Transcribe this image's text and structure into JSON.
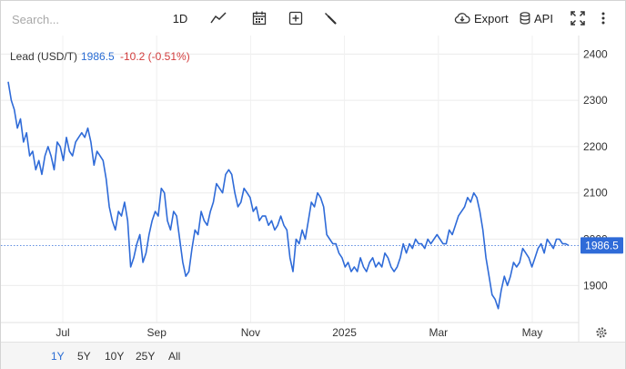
{
  "toolbar": {
    "search_placeholder": "Search...",
    "period_label": "1D",
    "export_label": "Export",
    "api_label": "API",
    "icons": [
      "line-chart-icon",
      "calendar-icon",
      "add-icon",
      "wrench-icon",
      "cloud-download-icon",
      "database-icon",
      "fullscreen-icon",
      "more-vert-icon"
    ]
  },
  "header": {
    "name": "Lead (USD/T)",
    "last": "1986.5",
    "change": "-10.2 (-0.51%)"
  },
  "price_label": "1986.5",
  "ranges": [
    {
      "label": "1Y",
      "active": true
    },
    {
      "label": "5Y",
      "active": false
    },
    {
      "label": "10Y",
      "active": false
    },
    {
      "label": "25Y",
      "active": false
    },
    {
      "label": "All",
      "active": false
    }
  ],
  "chart_data": {
    "type": "line",
    "title": "Lead (USD/T)",
    "x_ticks": [
      "Jul",
      "Sep",
      "Nov",
      "2025",
      "Mar",
      "May"
    ],
    "y_ticks": [
      1900,
      2000,
      2100,
      2200,
      2300,
      2400
    ],
    "ylim": [
      1820,
      2440
    ],
    "grid": true,
    "last_value": 1986.5,
    "colors": {
      "line": "#2f6bd8",
      "label_bg": "#2f6bd8"
    },
    "series": [
      {
        "values": [
          2340,
          2300,
          2280,
          2240,
          2260,
          2210,
          2230,
          2180,
          2190,
          2150,
          2170,
          2140,
          2180,
          2200,
          2180,
          2150,
          2210,
          2200,
          2170,
          2220,
          2190,
          2180,
          2210,
          2220,
          2230,
          2220,
          2240,
          2210,
          2160,
          2190,
          2180,
          2170,
          2130,
          2070,
          2040,
          2020,
          2060,
          2050,
          2080,
          2040,
          1940,
          1960,
          1990,
          2010,
          1950,
          1970,
          2010,
          2040,
          2060,
          2050,
          2110,
          2100,
          2040,
          2020,
          2060,
          2050,
          2000,
          1950,
          1920,
          1930,
          1980,
          2020,
          2010,
          2060,
          2040,
          2030,
          2060,
          2080,
          2120,
          2110,
          2100,
          2140,
          2150,
          2140,
          2100,
          2070,
          2080,
          2110,
          2100,
          2090,
          2060,
          2070,
          2040,
          2050,
          2050,
          2030,
          2040,
          2020,
          2030,
          2050,
          2030,
          2020,
          1960,
          1930,
          2000,
          1990,
          2020,
          2000,
          2040,
          2080,
          2070,
          2100,
          2090,
          2070,
          2010,
          2000,
          1990,
          1990,
          1970,
          1960,
          1940,
          1950,
          1930,
          1940,
          1930,
          1960,
          1940,
          1930,
          1950,
          1960,
          1940,
          1950,
          1940,
          1970,
          1960,
          1940,
          1930,
          1940,
          1960,
          1990,
          1970,
          1990,
          1980,
          2000,
          1990,
          1990,
          1980,
          2000,
          1990,
          2000,
          2010,
          2000,
          1990,
          1990,
          2020,
          2010,
          2030,
          2050,
          2060,
          2070,
          2090,
          2080,
          2100,
          2090,
          2060,
          2020,
          1960,
          1920,
          1880,
          1870,
          1850,
          1890,
          1920,
          1900,
          1920,
          1950,
          1940,
          1950,
          1980,
          1970,
          1960,
          1940,
          1960,
          1980,
          1990,
          1970,
          2000,
          1990,
          1980,
          2000,
          2000,
          1990,
          1990,
          1986.5
        ]
      }
    ]
  }
}
